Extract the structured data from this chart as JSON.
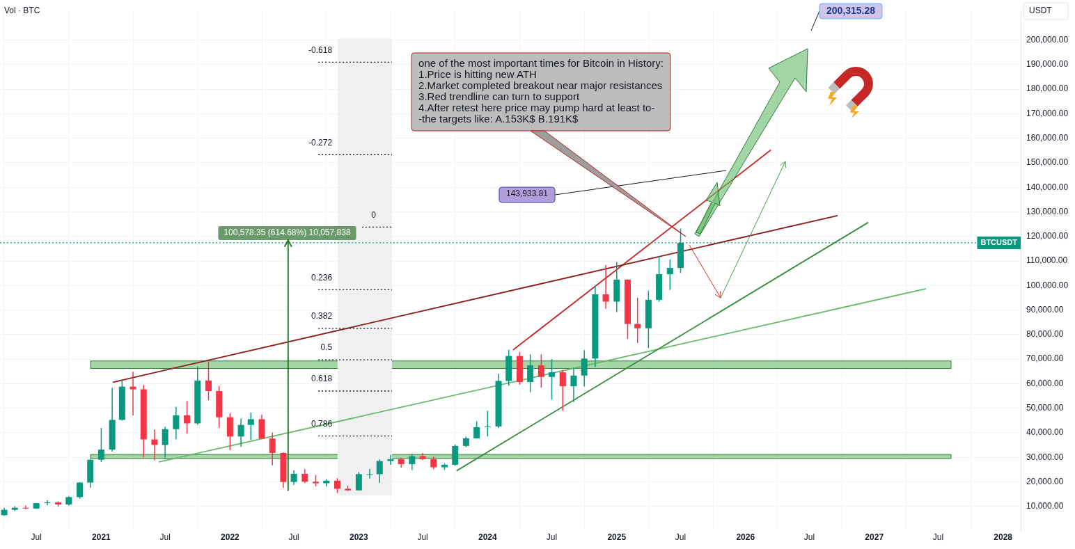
{
  "chart_data": {
    "type": "candlestick",
    "ylabel": "USDT",
    "x": [
      "2020-04",
      "2020-05",
      "2020-06",
      "2020-07",
      "2020-08",
      "2020-09",
      "2020-10",
      "2020-11",
      "2020-12",
      "2021-01",
      "2021-02",
      "2021-03",
      "2021-04",
      "2021-05",
      "2021-06",
      "2021-07",
      "2021-08",
      "2021-09",
      "2021-10",
      "2021-11",
      "2021-12",
      "2022-01",
      "2022-02",
      "2022-03",
      "2022-04",
      "2022-05",
      "2022-06",
      "2022-07",
      "2022-08",
      "2022-09",
      "2022-10",
      "2022-11",
      "2022-12",
      "2023-01",
      "2023-02",
      "2023-03",
      "2023-04",
      "2023-05",
      "2023-06",
      "2023-07",
      "2023-08",
      "2023-09",
      "2023-10",
      "2023-11",
      "2023-12",
      "2024-01",
      "2024-02",
      "2024-03",
      "2024-04",
      "2024-05",
      "2024-06",
      "2024-07",
      "2024-08",
      "2024-09",
      "2024-10",
      "2024-11",
      "2024-12",
      "2025-01",
      "2025-02",
      "2025-03",
      "2025-04",
      "2025-05",
      "2025-06",
      "2025-07"
    ],
    "ohlc": [
      [
        6430,
        9460,
        6150,
        8620
      ],
      [
        8620,
        10070,
        8120,
        9450
      ],
      [
        9450,
        10380,
        8900,
        9140
      ],
      [
        9140,
        11440,
        8990,
        11330
      ],
      [
        11330,
        12470,
        10530,
        11650
      ],
      [
        11650,
        12060,
        9880,
        10780
      ],
      [
        10780,
        14100,
        10380,
        13800
      ],
      [
        13800,
        19860,
        13200,
        19700
      ],
      [
        19700,
        29300,
        17570,
        28990
      ],
      [
        28990,
        41950,
        28130,
        33140
      ],
      [
        33140,
        58350,
        32300,
        45240
      ],
      [
        45240,
        61780,
        44950,
        58800
      ],
      [
        58800,
        64850,
        47050,
        57700
      ],
      [
        57700,
        59500,
        30000,
        37300
      ],
      [
        37300,
        41330,
        28800,
        35040
      ],
      [
        35040,
        42400,
        29280,
        41460
      ],
      [
        41460,
        50500,
        37330,
        47100
      ],
      [
        47100,
        52920,
        39600,
        43820
      ],
      [
        43820,
        67000,
        43280,
        61300
      ],
      [
        61300,
        69000,
        53250,
        57000
      ],
      [
        57000,
        59050,
        42000,
        46300
      ],
      [
        46300,
        47990,
        32930,
        38480
      ],
      [
        38480,
        45820,
        34320,
        43190
      ],
      [
        43190,
        48190,
        37170,
        45540
      ],
      [
        45540,
        47450,
        37580,
        37640
      ],
      [
        37640,
        40050,
        26700,
        31800
      ],
      [
        31800,
        31960,
        17600,
        19940
      ],
      [
        19940,
        24670,
        18780,
        23300
      ],
      [
        23300,
        25210,
        19520,
        20050
      ],
      [
        20050,
        22800,
        18150,
        19430
      ],
      [
        19430,
        21100,
        18190,
        20490
      ],
      [
        20490,
        21480,
        15480,
        17170
      ],
      [
        17170,
        18390,
        16260,
        16540
      ],
      [
        16540,
        23960,
        16500,
        23140
      ],
      [
        23140,
        25250,
        21350,
        23150
      ],
      [
        23150,
        29190,
        19550,
        28480
      ],
      [
        28480,
        31000,
        26940,
        29250
      ],
      [
        29250,
        29820,
        25810,
        27220
      ],
      [
        27220,
        31440,
        24800,
        30480
      ],
      [
        30480,
        31800,
        28860,
        29230
      ],
      [
        29230,
        30220,
        25160,
        25940
      ],
      [
        25940,
        27480,
        24900,
        26970
      ],
      [
        26970,
        35200,
        26550,
        34640
      ],
      [
        34640,
        38430,
        34100,
        37720
      ],
      [
        37720,
        44700,
        37630,
        42280
      ],
      [
        42280,
        48970,
        38550,
        42580
      ],
      [
        42580,
        64000,
        41880,
        61130
      ],
      [
        61130,
        73780,
        59220,
        71280
      ],
      [
        71280,
        72800,
        59600,
        60670
      ],
      [
        60670,
        71980,
        56550,
        67500
      ],
      [
        67500,
        71950,
        58400,
        62750
      ],
      [
        62750,
        70000,
        53500,
        64630
      ],
      [
        64630,
        65600,
        49000,
        58970
      ],
      [
        58970,
        66500,
        52550,
        63300
      ],
      [
        63300,
        73620,
        58870,
        70220
      ],
      [
        70220,
        99800,
        66800,
        96400
      ],
      [
        96400,
        108350,
        90500,
        93430
      ],
      [
        93430,
        109600,
        89160,
        102400
      ],
      [
        102400,
        102500,
        78250,
        84350
      ],
      [
        84350,
        95000,
        76600,
        82550
      ],
      [
        82550,
        97900,
        74500,
        94170
      ],
      [
        94170,
        111980,
        93400,
        104600
      ],
      [
        104600,
        110600,
        98200,
        107150
      ],
      [
        107150,
        123200,
        105100,
        117400
      ]
    ],
    "colors": [
      "#089981",
      "#089981",
      "#f23645",
      "#089981",
      "#089981",
      "#f23645",
      "#089981",
      "#089981",
      "#089981",
      "#089981",
      "#089981",
      "#089981",
      "#f23645",
      "#f23645",
      "#f23645",
      "#089981",
      "#089981",
      "#f23645",
      "#089981",
      "#f23645",
      "#f23645",
      "#f23645",
      "#089981",
      "#089981",
      "#f23645",
      "#f23645",
      "#f23645",
      "#089981",
      "#f23645",
      "#f23645",
      "#089981",
      "#f23645",
      "#f23645",
      "#089981",
      "#089981",
      "#089981",
      "#089981",
      "#f23645",
      "#089981",
      "#f23645",
      "#f23645",
      "#089981",
      "#089981",
      "#089981",
      "#089981",
      "#089981",
      "#089981",
      "#089981",
      "#f23645",
      "#089981",
      "#f23645",
      "#089981",
      "#f23645",
      "#089981",
      "#089981",
      "#089981",
      "#f23645",
      "#089981",
      "#f23645",
      "#f23645",
      "#089981",
      "#089981",
      "#089981",
      "#089981"
    ],
    "series": [
      {
        "type": "line",
        "color": "#8b1a1a",
        "x": [
          "2021-02-03",
          "2026-09-19"
        ],
        "values": [
          60600,
          128500
        ]
      },
      {
        "type": "line",
        "color": "#c62828",
        "x": [
          "2024-03-13",
          "2026-03-14"
        ],
        "values": [
          73700,
          155200
        ]
      },
      {
        "type": "line",
        "color": "#388e3c",
        "x": [
          "2023-10-05",
          "2026-12-15"
        ],
        "values": [
          24500,
          125700
        ]
      },
      {
        "type": "line",
        "color": "#66bb6a",
        "x": [
          "2021-06-13",
          "2027-05-28"
        ],
        "values": [
          28100,
          98700
        ]
      },
      {
        "type": "line",
        "color": "#131722",
        "line_style": "dotted",
        "x": [
          "2022-09-08",
          "2023-04-05"
        ],
        "values": [
          191000,
          191000
        ]
      },
      {
        "type": "line",
        "color": "#131722",
        "line_style": "dotted",
        "x": [
          "2022-09-08",
          "2023-04-05"
        ],
        "values": [
          153300,
          153300
        ]
      },
      {
        "type": "line",
        "color": "#131722",
        "line_style": "dotted",
        "x": [
          "2023-01-10",
          "2023-04-05"
        ],
        "values": [
          123800,
          123800
        ]
      },
      {
        "type": "line",
        "color": "#131722",
        "line_style": "dotted",
        "x": [
          "2022-09-08",
          "2023-04-05"
        ],
        "values": [
          98300,
          98300
        ]
      },
      {
        "type": "line",
        "color": "#131722",
        "line_style": "dotted",
        "x": [
          "2022-09-08",
          "2023-04-05"
        ],
        "values": [
          82500,
          82500
        ]
      },
      {
        "type": "line",
        "color": "#131722",
        "line_style": "dotted",
        "x": [
          "2022-09-08",
          "2023-04-05"
        ],
        "values": [
          69700,
          69700
        ]
      },
      {
        "type": "line",
        "color": "#131722",
        "line_style": "dotted",
        "x": [
          "2022-09-08",
          "2023-04-05"
        ],
        "values": [
          57000,
          57000
        ]
      },
      {
        "type": "line",
        "color": "#131722",
        "line_style": "dotted",
        "x": [
          "2022-09-08",
          "2023-04-05"
        ],
        "values": [
          38700,
          38700
        ]
      }
    ],
    "marker": "none",
    "xlim": [
      "2020-03-20",
      "2028-02-20"
    ],
    "xticks": [
      {
        "value": "2020-07",
        "label": "Jul"
      },
      {
        "value": "2021",
        "label": "2021"
      },
      {
        "value": "2021-07",
        "label": "Jul"
      },
      {
        "value": "2022",
        "label": "2022"
      },
      {
        "value": "2022-07",
        "label": "Jul"
      },
      {
        "value": "2023",
        "label": "2023"
      },
      {
        "value": "2023-07",
        "label": "Jul"
      },
      {
        "value": "2024",
        "label": "2024"
      },
      {
        "value": "2024-07",
        "label": "Jul"
      },
      {
        "value": "2025",
        "label": "2025"
      },
      {
        "value": "2025-07",
        "label": "Jul"
      },
      {
        "value": "2026",
        "label": "2026"
      },
      {
        "value": "2026-07",
        "label": "Jul"
      },
      {
        "value": "2027",
        "label": "2027"
      },
      {
        "value": "2027-07",
        "label": "Jul"
      },
      {
        "value": "2028",
        "label": "2028"
      }
    ],
    "ylim": [
      300,
      212000
    ],
    "yticks": [
      {
        "value": 10000,
        "label": "10,000.00"
      },
      {
        "value": 20000,
        "label": "20,000.00"
      },
      {
        "value": 30000,
        "label": "30,000.00"
      },
      {
        "value": 40000,
        "label": "40,000.00"
      },
      {
        "value": 50000,
        "label": "50,000.00"
      },
      {
        "value": 60000,
        "label": "60,000.00"
      },
      {
        "value": 70000,
        "label": "70,000.00"
      },
      {
        "value": 80000,
        "label": "80,000.00"
      },
      {
        "value": 90000,
        "label": "90,000.00"
      },
      {
        "value": 100000,
        "label": "100,000.00"
      },
      {
        "value": 110000,
        "label": "110,000.00"
      },
      {
        "value": 120000,
        "label": "120,000.00"
      },
      {
        "value": 130000,
        "label": "130,000.00"
      },
      {
        "value": 140000,
        "label": "140,000.00"
      },
      {
        "value": 150000,
        "label": "150,000.00"
      },
      {
        "value": 160000,
        "label": "160,000.00"
      },
      {
        "value": 170000,
        "label": "170,000.00"
      },
      {
        "value": 180000,
        "label": "180,000.00"
      },
      {
        "value": 190000,
        "label": "190,000.00"
      },
      {
        "value": 200000,
        "label": "200,000.00"
      }
    ],
    "grid": true,
    "legend": false,
    "bands": [
      {
        "axis": "y",
        "from": 66200,
        "to": 69250,
        "color": "#a5d6a7"
      },
      {
        "axis": "y",
        "from": 29500,
        "to": 31150,
        "color": "#a5d6a7"
      },
      {
        "axis": "x",
        "from": "2022-11-02",
        "to": "2023-04-05",
        "color": "#f0f0f0"
      }
    ],
    "ref_lines": [
      {
        "axis": "y",
        "value": 117400,
        "label": "BTCUSDT",
        "color": "#089981",
        "line_style": "dotted"
      }
    ],
    "annotations": [
      "Vol · BTC",
      {
        "text": "100,578.35 (614.68%) 10,057,838",
        "x": "2022-06-12",
        "y": 116800
      },
      "143,933.81",
      "200,315.28",
      "one of the most important times for Bitcoin in History:\n1.Price is hitting new ATH\n2.Market completed breakout near major resistances\n3.Red trendline can turn to support\n4.After retest here price may pump hard at least to-\n-the targets like: A.153K$ B.191K$",
      {
        "text": "-0.618",
        "x": "2022-09-08",
        "y": 191000
      },
      {
        "text": "-0.272",
        "x": "2022-09-08",
        "y": 153300
      },
      {
        "text": "0",
        "x": "2023-01-10",
        "y": 123800
      },
      {
        "text": "0.236",
        "x": "2022-09-08",
        "y": 98300
      },
      {
        "text": "0.382",
        "x": "2022-09-08",
        "y": 82500
      },
      {
        "text": "0.5",
        "x": "2022-09-08",
        "y": 69700
      },
      {
        "text": "0.618",
        "x": "2022-09-08",
        "y": 57000
      },
      {
        "text": "0.786",
        "x": "2022-09-08",
        "y": 38700
      }
    ]
  }
}
